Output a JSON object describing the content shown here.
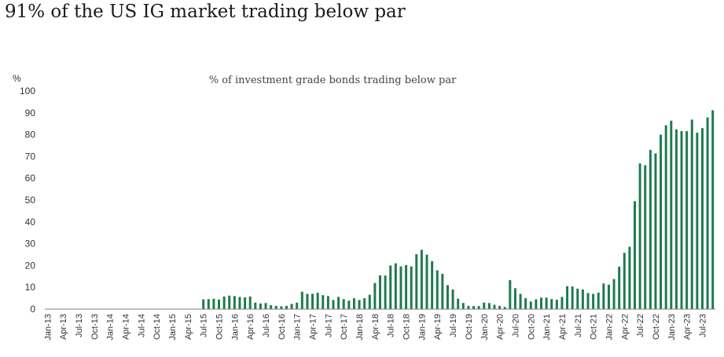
{
  "headline": "91% of the US IG market trading below par",
  "colors": {
    "bar": "#1e7a4f",
    "axis": "#7f7f7f",
    "text": "#333333"
  },
  "chart_data": {
    "type": "bar",
    "title": "% of investment grade bonds trading below par",
    "ylabel": "%",
    "xlabel": "",
    "ylim": [
      0,
      100
    ],
    "yticks": [
      0,
      10,
      20,
      30,
      40,
      50,
      60,
      70,
      80,
      90,
      100
    ],
    "grid": false,
    "start_month": "Jan-13",
    "tick_labels": [
      "Jan-13",
      "Apr-13",
      "Jul-13",
      "Oct-13",
      "Jan-14",
      "Apr-14",
      "Jul-14",
      "Oct-14",
      "Jan-15",
      "Apr-15",
      "Jul-15",
      "Oct-15",
      "Jan-16",
      "Apr-16",
      "Jul-16",
      "Oct-16",
      "Jan-17",
      "Apr-17",
      "Jul-17",
      "Oct-17",
      "Jan-18",
      "Apr-18",
      "Jul-18",
      "Oct-18",
      "Jan-19",
      "Apr-19",
      "Jul-19",
      "Oct-19",
      "Jan-20",
      "Apr-20",
      "Jul-20",
      "Oct-20",
      "Jan-21",
      "Apr-21",
      "Jul-21",
      "Oct-21",
      "Jan-22",
      "Apr-22",
      "Jul-22",
      "Oct-22",
      "Jan-23",
      "Apr-23",
      "Jul-23"
    ],
    "series": [
      {
        "name": "% of investment grade bonds trading below par",
        "values": [
          0,
          0,
          0,
          0,
          0,
          0,
          0,
          0,
          0,
          0,
          0,
          0,
          0,
          0,
          0,
          0,
          0,
          0,
          0,
          0,
          0,
          0,
          0,
          0,
          0,
          0,
          0,
          0,
          0,
          0,
          4.5,
          4.6,
          4.8,
          4.4,
          5.8,
          6.2,
          6.0,
          5.6,
          5.4,
          5.8,
          3.0,
          2.6,
          2.8,
          1.8,
          1.5,
          1.3,
          1.5,
          2.4,
          3.0,
          8.0,
          7.0,
          7.0,
          7.5,
          6.4,
          6.0,
          4.2,
          5.6,
          4.6,
          3.9,
          5.0,
          4.2,
          5.0,
          6.6,
          12.0,
          15.5,
          15.4,
          20.0,
          21.0,
          19.6,
          20.2,
          19.6,
          25.2,
          27.2,
          25.0,
          22.0,
          17.8,
          16.2,
          11.0,
          9.0,
          4.8,
          2.8,
          1.5,
          1.4,
          1.4,
          3.0,
          2.8,
          2.0,
          1.5,
          1.0,
          13.3,
          9.6,
          7.0,
          5.0,
          3.5,
          4.5,
          5.3,
          5.3,
          4.6,
          4.3,
          5.6,
          10.5,
          10.4,
          9.4,
          9.0,
          7.4,
          7.0,
          7.6,
          11.8,
          11.2,
          13.8,
          19.5,
          25.8,
          28.6,
          49.5,
          66.8,
          66.0,
          73.0,
          71.4,
          80.0,
          84.3,
          86.4,
          82.4,
          81.6,
          81.6,
          86.9,
          80.9,
          83.0,
          87.9,
          91.2
        ]
      }
    ]
  }
}
